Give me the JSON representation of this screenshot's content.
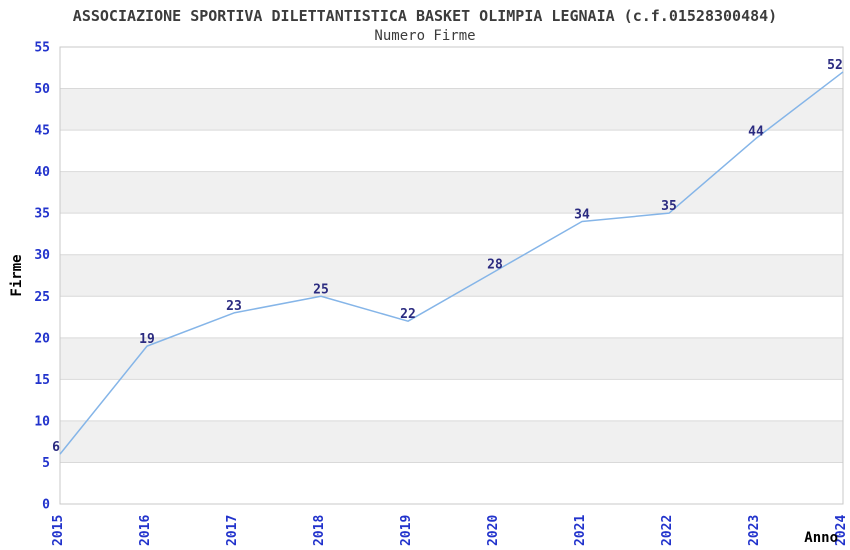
{
  "header": {
    "title": "ASSOCIAZIONE SPORTIVA DILETTANTISTICA BASKET OLIMPIA LEGNAIA (c.f.01528300484)",
    "subtitle": "Numero Firme"
  },
  "chart_data": {
    "type": "line",
    "x": [
      2015,
      2016,
      2017,
      2018,
      2019,
      2020,
      2021,
      2022,
      2023,
      2024
    ],
    "values": [
      6,
      19,
      23,
      25,
      22,
      28,
      34,
      35,
      44,
      52
    ],
    "title": "ASSOCIAZIONE SPORTIVA DILETTANTISTICA BASKET OLIMPIA LEGNAIA (c.f.01528300484)",
    "subtitle": "Numero Firme",
    "xlabel": "Anno",
    "ylabel": "Firme",
    "ylim": [
      0,
      55
    ],
    "ytick_step": 5,
    "yticks": [
      0,
      5,
      10,
      15,
      20,
      25,
      30,
      35,
      40,
      45,
      50,
      55
    ],
    "grid": "horizontal-bands",
    "legend": "none",
    "colors": {
      "line": "#85b5e8",
      "tick_label": "#2233cc",
      "data_label": "#2b2b80",
      "band_white": "#ffffff",
      "band_gray": "#f0f0f0",
      "grid_line": "#d9d9d9",
      "plot_border": "#c9c9c9",
      "title_text": "#3c3c3c",
      "axis_title_text": "#000000"
    }
  }
}
